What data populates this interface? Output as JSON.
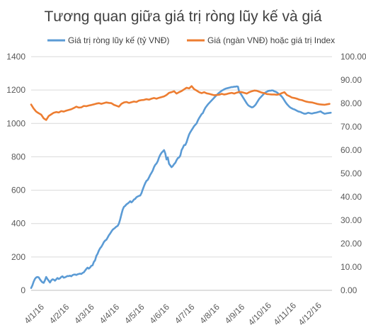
{
  "chart_data": {
    "type": "line",
    "title": "Tương quan giữa giá trị ròng lũy kế và giá",
    "xlabel": "",
    "ylabel": "",
    "legend_position": "top",
    "grid": true,
    "categories": [
      "4/1/16",
      "4/2/16",
      "4/3/16",
      "4/4/16",
      "4/5/16",
      "4/6/16",
      "4/7/16",
      "4/8/16",
      "4/9/16",
      "4/10/16",
      "4/11/16",
      "4/12/16"
    ],
    "y_left": {
      "ylim": [
        0,
        1400
      ],
      "ticks": [
        "0",
        "200",
        "400",
        "600",
        "800",
        "1000",
        "1200",
        "1400"
      ]
    },
    "y_right": {
      "ylim": [
        0,
        100
      ],
      "ticks": [
        "0.00",
        "10.00",
        "20.00",
        "30.00",
        "40.00",
        "50.00",
        "60.00",
        "70.00",
        "80.00",
        "90.00",
        "100.00"
      ]
    },
    "series": [
      {
        "name": "Giá trị ròng lũy kế (tỷ VNĐ)",
        "axis": "left",
        "color": "#5b9bd5",
        "x": [
          0,
          0.05,
          0.1,
          0.15,
          0.2,
          0.25,
          0.3,
          0.35,
          0.4,
          0.45,
          0.5,
          0.55,
          0.6,
          0.65,
          0.7,
          0.75,
          0.8,
          0.85,
          0.9,
          0.95,
          1.0,
          1.05,
          1.1,
          1.15,
          1.2,
          1.25,
          1.3,
          1.35,
          1.4,
          1.45,
          1.5,
          1.55,
          1.6,
          1.65,
          1.7,
          1.75,
          1.8,
          1.85,
          1.9,
          1.95,
          2.0,
          2.05,
          2.1,
          2.15,
          2.2,
          2.25,
          2.3,
          2.35,
          2.4,
          2.45,
          2.5,
          2.55,
          2.6,
          2.65,
          2.7,
          2.75,
          2.8,
          2.85,
          2.9,
          2.95,
          3.0,
          3.05,
          3.1,
          3.15,
          3.2,
          3.25,
          3.3,
          3.35,
          3.4,
          3.45,
          3.5,
          3.55,
          3.6,
          3.65,
          3.7,
          3.75,
          3.8,
          3.85,
          3.9,
          3.95,
          4.0,
          4.05,
          4.1,
          4.15,
          4.2,
          4.25,
          4.3,
          4.35,
          4.4,
          4.45,
          4.5,
          4.55,
          4.6,
          4.65,
          4.7,
          4.75,
          4.8,
          4.85,
          4.9,
          4.95,
          5.0,
          5.05,
          5.1,
          5.15,
          5.2,
          5.25,
          5.3,
          5.35,
          5.4,
          5.45,
          5.5,
          5.55,
          5.6,
          5.65,
          5.7,
          5.75,
          5.8,
          5.85,
          5.9,
          5.95,
          6.0,
          6.05,
          6.1,
          6.15,
          6.2,
          6.25,
          6.3,
          6.35,
          6.4,
          6.45,
          6.5,
          6.55,
          6.6,
          6.65,
          6.7,
          6.75,
          6.8,
          6.85,
          6.9,
          6.95,
          7.0,
          7.05,
          7.1,
          7.15,
          7.2,
          7.25,
          7.3,
          7.35,
          7.4,
          7.45,
          7.5,
          7.55,
          7.6,
          7.65,
          7.7,
          7.75,
          7.8,
          7.85,
          7.9,
          7.95,
          8.0,
          8.05,
          8.1,
          8.15,
          8.2,
          8.25,
          8.3,
          8.35,
          8.4,
          8.45,
          8.5,
          8.55,
          8.6,
          8.65,
          8.7,
          8.75,
          8.8,
          8.85,
          8.9,
          8.95,
          9.0,
          9.05,
          9.1,
          9.15,
          9.2,
          9.25,
          9.3,
          9.35,
          9.4,
          9.45,
          9.5,
          9.55,
          9.6,
          9.65,
          9.7,
          9.75,
          9.8,
          9.85,
          9.9,
          9.95,
          10.0,
          10.05,
          10.1,
          10.15,
          10.2,
          10.25,
          10.3,
          10.35,
          10.4,
          10.45,
          10.5,
          10.55,
          10.6,
          10.65,
          10.7,
          10.75,
          10.8,
          10.85,
          10.9,
          10.95,
          11.0,
          11.05,
          11.1,
          11.15,
          11.2,
          11.25,
          11.3,
          11.35,
          11.4,
          11.45,
          11.5,
          11.55,
          11.6,
          11.65,
          11.7,
          11.75,
          11.8,
          11.85,
          11.9,
          11.95
        ],
        "values": [
          14,
          30,
          52,
          68,
          77,
          80,
          78,
          66,
          56,
          48,
          45,
          60,
          80,
          68,
          58,
          47,
          59,
          66,
          64,
          58,
          66,
          74,
          68,
          72,
          80,
          84,
          76,
          78,
          82,
          86,
          85,
          88,
          84,
          91,
          94,
          95,
          92,
          96,
          98,
          100,
          98,
          104,
          108,
          118,
          128,
          136,
          130,
          137,
          147,
          150,
          170,
          180,
          206,
          219,
          238,
          252,
          261,
          274,
          289,
          298,
          303,
          316,
          330,
          340,
          352,
          363,
          369,
          375,
          382,
          386,
          400,
          425,
          455,
          483,
          500,
          506,
          515,
          520,
          526,
          534,
          527,
          534,
          544,
          548,
          558,
          562,
          566,
          568,
          582,
          604,
          624,
          642,
          656,
          662,
          676,
          692,
          704,
          718,
          738,
          752,
          760,
          774,
          796,
          812,
          824,
          832,
          840,
          820,
          784,
          796,
          758,
          748,
          738,
          745,
          756,
          764,
          780,
          792,
          796,
          808,
          840,
          854,
          870,
          871,
          888,
          912,
          934,
          948,
          960,
          972,
          984,
          992,
          1000,
          1018,
          1032,
          1044,
          1056,
          1062,
          1080,
          1094,
          1104,
          1114,
          1122,
          1130,
          1138,
          1146,
          1154,
          1162,
          1170,
          1178,
          1184,
          1190,
          1196,
          1200,
          1204,
          1208,
          1210,
          1212,
          1214,
          1216,
          1218,
          1218,
          1220,
          1220,
          1222,
          1220,
          1186,
          1180,
          1168,
          1156,
          1144,
          1132,
          1120,
          1110,
          1104,
          1100,
          1096,
          1098,
          1104,
          1112,
          1124,
          1136,
          1148,
          1156,
          1164,
          1172,
          1180,
          1186,
          1190,
          1194,
          1196,
          1196,
          1198,
          1197,
          1192,
          1190,
          1186,
          1180,
          1174,
          1168,
          1160,
          1150,
          1138,
          1126,
          1116,
          1108,
          1100,
          1094,
          1090,
          1086,
          1084,
          1080,
          1076,
          1072,
          1070,
          1068,
          1064,
          1061,
          1058,
          1058,
          1061,
          1064,
          1062,
          1060,
          1059,
          1061,
          1063,
          1064,
          1066,
          1068,
          1070,
          1072,
          1066,
          1062,
          1058,
          1059,
          1061,
          1062,
          1063,
          1064
        ]
      },
      {
        "name": "Giá (ngàn VNĐ) hoặc giá trị Index",
        "axis": "right",
        "color": "#ed7d31",
        "x": [
          0,
          0.1,
          0.2,
          0.3,
          0.4,
          0.5,
          0.6,
          0.7,
          0.8,
          0.9,
          1.0,
          1.1,
          1.2,
          1.3,
          1.4,
          1.5,
          1.6,
          1.7,
          1.8,
          1.9,
          2.0,
          2.1,
          2.2,
          2.3,
          2.4,
          2.5,
          2.6,
          2.7,
          2.8,
          2.9,
          3.0,
          3.1,
          3.2,
          3.3,
          3.4,
          3.5,
          3.6,
          3.7,
          3.8,
          3.9,
          4.0,
          4.1,
          4.2,
          4.3,
          4.4,
          4.5,
          4.6,
          4.7,
          4.8,
          4.9,
          5.0,
          5.1,
          5.2,
          5.3,
          5.4,
          5.5,
          5.6,
          5.7,
          5.8,
          5.9,
          6.0,
          6.1,
          6.2,
          6.3,
          6.4,
          6.5,
          6.6,
          6.7,
          6.8,
          6.9,
          7.0,
          7.1,
          7.2,
          7.3,
          7.4,
          7.5,
          7.6,
          7.7,
          7.8,
          7.9,
          8.0,
          8.1,
          8.2,
          8.3,
          8.4,
          8.5,
          8.6,
          8.7,
          8.8,
          8.9,
          9.0,
          9.1,
          9.2,
          9.3,
          9.4,
          9.5,
          9.6,
          9.7,
          9.8,
          9.9,
          10.0,
          10.1,
          10.2,
          10.3,
          10.4,
          10.5,
          10.6,
          10.7,
          10.8,
          10.9,
          11.0,
          11.1,
          11.2,
          11.3,
          11.4,
          11.5,
          11.6,
          11.7,
          11.8,
          11.9
        ],
        "values": [
          79.5,
          77.8,
          76.5,
          75.8,
          75.2,
          73.6,
          72.9,
          74.6,
          75.3,
          76.0,
          76.3,
          76.1,
          76.7,
          76.5,
          76.9,
          77.2,
          77.5,
          78.0,
          78.6,
          78.2,
          78.3,
          78.9,
          78.8,
          79.1,
          79.3,
          79.6,
          79.9,
          80.1,
          79.8,
          80.1,
          80.4,
          80.2,
          80.1,
          79.4,
          79.0,
          78.6,
          79.8,
          80.4,
          80.6,
          80.2,
          80.5,
          80.8,
          80.6,
          81.2,
          81.4,
          81.5,
          81.8,
          81.6,
          82.0,
          82.3,
          82.0,
          82.4,
          82.7,
          83.0,
          83.6,
          84.5,
          84.8,
          85.2,
          84.2,
          84.8,
          85.3,
          86.0,
          86.7,
          86.4,
          87.4,
          86.1,
          85.5,
          84.8,
          84.4,
          84.8,
          84.3,
          84.1,
          83.8,
          83.5,
          83.6,
          83.7,
          84.1,
          83.8,
          84.0,
          84.3,
          84.5,
          84.2,
          84.6,
          84.9,
          84.8,
          84.5,
          84.2,
          84.8,
          85.2,
          85.5,
          85.4,
          85.0,
          84.6,
          84.4,
          84.0,
          83.9,
          83.8,
          83.8,
          83.7,
          83.9,
          84.4,
          84.8,
          83.6,
          83.1,
          82.5,
          82.3,
          82.0,
          81.6,
          81.4,
          81.0,
          80.7,
          80.5,
          80.4,
          80.1,
          79.8,
          79.6,
          79.5,
          79.4,
          79.6,
          79.8
        ]
      }
    ]
  }
}
